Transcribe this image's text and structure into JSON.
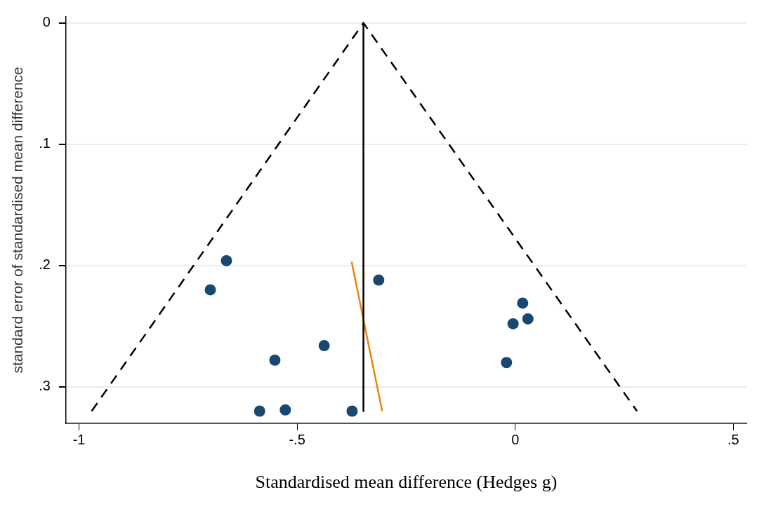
{
  "chart_data": {
    "type": "scatter",
    "xlabel": "Standardised mean difference (Hedges g)",
    "ylabel": "standard error of standardised mean difference",
    "xlim": [
      -1.03,
      0.53
    ],
    "ylim": [
      0.33,
      -0.005
    ],
    "xticks": [
      -1,
      {
        "value": -0.5,
        "label": "-.5"
      },
      0,
      {
        "value": 0.5,
        "label": ".5"
      }
    ],
    "yticks": [
      0,
      {
        "value": 0.1,
        "label": ".1"
      },
      {
        "value": 0.2,
        "label": ".2"
      },
      {
        "value": 0.3,
        "label": ".3"
      }
    ],
    "grid": "y",
    "legend": false,
    "series": [
      {
        "type": "line",
        "color": "#000000",
        "line_style": "dashed",
        "marker": "none",
        "x": [
          -0.971,
          -0.348,
          0.279
        ],
        "values": [
          0.32,
          0,
          0.32
        ]
      },
      {
        "type": "line",
        "color": "#000000",
        "line_style": "solid",
        "marker": "none",
        "x": [
          -0.348,
          -0.348
        ],
        "values": [
          0,
          0.32
        ]
      },
      {
        "type": "line",
        "color": "#e8850c",
        "line_style": "solid",
        "marker": "none",
        "x": [
          -0.375,
          -0.305
        ],
        "values": [
          0.197,
          0.32
        ]
      },
      {
        "color": "#1a476f",
        "marker": "circle",
        "x": [
          -0.662,
          -0.699,
          -0.313,
          0.017,
          -0.005,
          0.029,
          -0.438,
          -0.551,
          -0.02,
          -0.586,
          -0.527,
          -0.374
        ],
        "values": [
          0.196,
          0.22,
          0.212,
          0.231,
          0.248,
          0.244,
          0.266,
          0.278,
          0.28,
          0.32,
          0.319,
          0.32
        ]
      }
    ]
  }
}
